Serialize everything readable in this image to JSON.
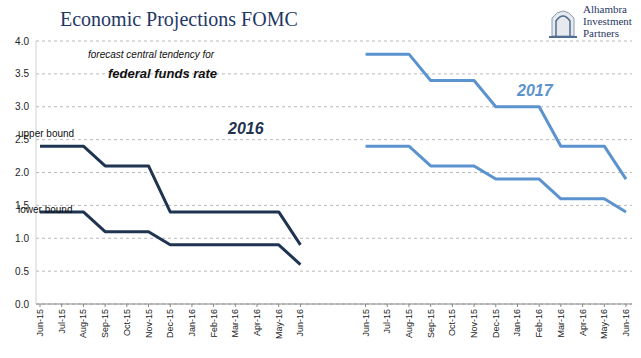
{
  "chart_data": {
    "type": "line",
    "title": "Economic Projections FOMC",
    "annotations": [
      "forecast central tendency for",
      "federal funds rate",
      "upper bound",
      "lower bound",
      "2016",
      "2017",
      "Alhambra",
      "Investment",
      "Partners"
    ],
    "categories": [
      "Jun-15",
      "Jul-15",
      "Aug-15",
      "Sep-15",
      "Oct-15",
      "Nov-15",
      "Dec-15",
      "Jan-16",
      "Feb-16",
      "Mar-16",
      "Apr-16",
      "May-16",
      "Jun-16",
      null,
      null,
      "Jun-15",
      "Jul-15",
      "Aug-15",
      "Sep-15",
      "Oct-15",
      "Nov-15",
      "Dec-15",
      "Jan-16",
      "Feb-16",
      "Mar-16",
      "Apr-16",
      "May-16",
      "Jun-16"
    ],
    "series": [
      {
        "color": "#1f3451",
        "line_style": "solid",
        "values": [
          2.4,
          2.4,
          2.4,
          2.1,
          2.1,
          2.1,
          1.4,
          1.4,
          1.4,
          1.4,
          1.4,
          1.4,
          0.9,
          null,
          null,
          null,
          null,
          null,
          null,
          null,
          null,
          null,
          null,
          null,
          null,
          null,
          null,
          null
        ]
      },
      {
        "color": "#1f3451",
        "line_style": "solid",
        "values": [
          1.4,
          1.4,
          1.4,
          1.1,
          1.1,
          1.1,
          0.9,
          0.9,
          0.9,
          0.9,
          0.9,
          0.9,
          0.6,
          null,
          null,
          null,
          null,
          null,
          null,
          null,
          null,
          null,
          null,
          null,
          null,
          null,
          null,
          null
        ]
      },
      {
        "color": "#5b93cf",
        "line_style": "solid",
        "values": [
          null,
          null,
          null,
          null,
          null,
          null,
          null,
          null,
          null,
          null,
          null,
          null,
          null,
          null,
          null,
          3.8,
          3.8,
          3.8,
          3.4,
          3.4,
          3.4,
          3.0,
          3.0,
          3.0,
          2.4,
          2.4,
          2.4,
          1.9
        ]
      },
      {
        "color": "#5b93cf",
        "line_style": "solid",
        "values": [
          null,
          null,
          null,
          null,
          null,
          null,
          null,
          null,
          null,
          null,
          null,
          null,
          null,
          null,
          null,
          2.4,
          2.4,
          2.4,
          2.1,
          2.1,
          2.1,
          1.9,
          1.9,
          1.9,
          1.6,
          1.6,
          1.6,
          1.4
        ]
      }
    ],
    "ylim": [
      0,
      4
    ],
    "yticks": [
      {
        "value": 0,
        "label": "0.0"
      },
      0.5,
      {
        "value": 1,
        "label": "1.0"
      },
      1.5,
      {
        "value": 2,
        "label": "2.0"
      },
      2.5,
      {
        "value": 3,
        "label": "3.0"
      },
      3.5,
      {
        "value": 4,
        "label": "4.0"
      }
    ],
    "grid": true
  }
}
